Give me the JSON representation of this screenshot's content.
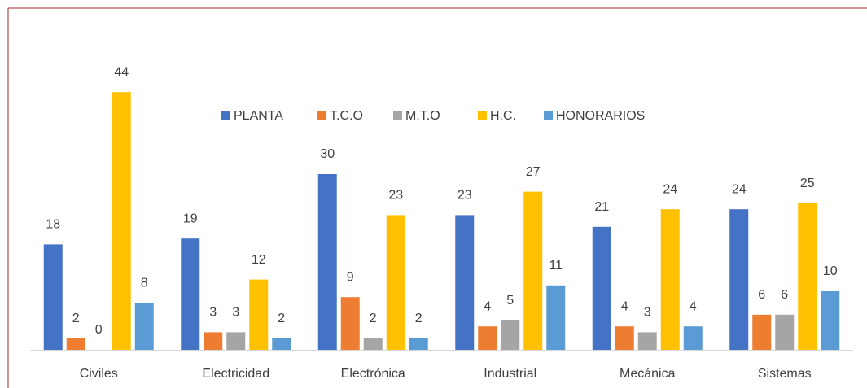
{
  "chart_data": {
    "type": "bar",
    "categories": [
      "Civiles",
      "Electricidad",
      "Electrónica",
      "Industrial",
      "Mecánica",
      "Sistemas"
    ],
    "series": [
      {
        "name": "PLANTA",
        "color": "#4472c4",
        "values": [
          18,
          19,
          30,
          23,
          21,
          24
        ]
      },
      {
        "name": "T.C.O",
        "color": "#ed7d31",
        "values": [
          2,
          3,
          9,
          4,
          4,
          6
        ]
      },
      {
        "name": "M.T.O",
        "color": "#a5a5a5",
        "values": [
          0,
          3,
          2,
          5,
          3,
          6
        ]
      },
      {
        "name": "H.C.",
        "color": "#ffc000",
        "values": [
          44,
          12,
          23,
          27,
          24,
          25
        ]
      },
      {
        "name": "HONORARIOS",
        "color": "#5b9bd5",
        "values": [
          8,
          2,
          2,
          11,
          4,
          10
        ]
      }
    ],
    "ylim": [
      0,
      50
    ],
    "legend": "top"
  }
}
